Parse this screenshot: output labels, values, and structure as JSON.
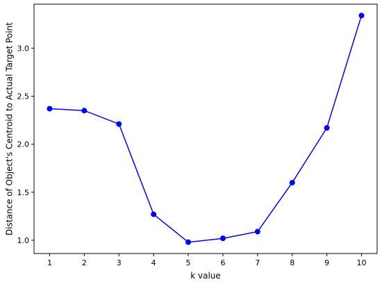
{
  "chart_data": {
    "type": "line",
    "title": "",
    "xlabel": "k value",
    "ylabel": "Distance of Object's Centroid to Actual Target Point",
    "x": [
      1,
      2,
      3,
      4,
      5,
      6,
      7,
      8,
      9,
      10
    ],
    "series": [
      {
        "values": [
          2.37,
          2.35,
          2.21,
          1.27,
          0.98,
          1.02,
          1.09,
          1.6,
          2.17,
          3.34
        ],
        "color": "#0000ff",
        "marker": "circle"
      }
    ],
    "xticks": [
      1,
      2,
      3,
      4,
      5,
      6,
      7,
      8,
      9,
      10
    ],
    "xtick_labels": [
      "1",
      "2",
      "3",
      "4",
      "5",
      "6",
      "7",
      "8",
      "9",
      "10"
    ],
    "yticks": [
      1.0,
      1.5,
      2.0,
      2.5,
      3.0
    ],
    "ytick_labels": [
      "1.0",
      "1.5",
      "2.0",
      "2.5",
      "3.0"
    ],
    "xlim": [
      0.55,
      10.45
    ],
    "ylim": [
      0.862,
      3.458
    ],
    "grid": false,
    "legend": "none"
  }
}
